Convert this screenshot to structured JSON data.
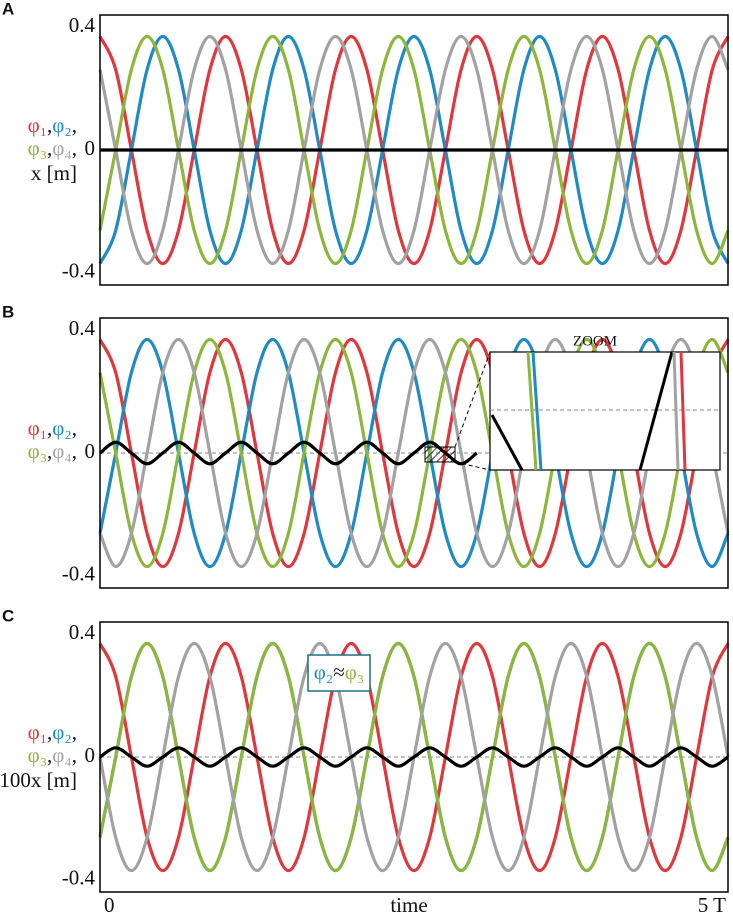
{
  "chart_data": [
    {
      "type": "line",
      "panel_label": "A",
      "name_separator": ",",
      "xlim": [
        0,
        5
      ],
      "ylim": [
        -0.44,
        0.44
      ],
      "yticks": [
        -0.4,
        0,
        0.4
      ],
      "zero_line": true,
      "x": [
        0,
        0.125,
        0.25,
        0.375,
        0.5,
        0.625,
        0.75,
        0.875,
        1,
        1.125,
        1.25,
        1.375,
        1.5,
        1.625,
        1.75,
        1.875,
        2,
        2.125,
        2.25,
        2.375,
        2.5,
        2.625,
        2.75,
        2.875,
        3,
        3.125,
        3.25,
        3.375,
        3.5,
        3.625,
        3.75,
        3.875,
        4,
        4.125,
        4.25,
        4.375,
        4.5,
        4.625,
        4.75,
        4.875,
        5
      ],
      "series": [
        {
          "name": "φ₁",
          "color": "#e0373c",
          "values": [
            0.37,
            0.262,
            0,
            -0.262,
            -0.37,
            -0.262,
            0,
            0.262,
            0.37,
            0.262,
            0,
            -0.262,
            -0.37,
            -0.262,
            0,
            0.262,
            0.37,
            0.262,
            0,
            -0.262,
            -0.37,
            -0.262,
            0,
            0.262,
            0.37,
            0.262,
            0,
            -0.262,
            -0.37,
            -0.262,
            0,
            0.262,
            0.37,
            0.262,
            0,
            -0.262,
            -0.37,
            -0.262,
            0,
            0.262,
            0.37
          ]
        },
        {
          "name": "φ₂",
          "color": "#1f8ac4",
          "values": [
            -0.37,
            -0.262,
            0,
            0.262,
            0.37,
            0.262,
            0,
            -0.262,
            -0.37,
            -0.262,
            0,
            0.262,
            0.37,
            0.262,
            0,
            -0.262,
            -0.37,
            -0.262,
            0,
            0.262,
            0.37,
            0.262,
            0,
            -0.262,
            -0.37,
            -0.262,
            0,
            0.262,
            0.37,
            0.262,
            0,
            -0.262,
            -0.37,
            -0.262,
            0,
            0.262,
            0.37,
            0.262,
            0,
            -0.262,
            -0.37
          ]
        },
        {
          "name": "φ₃",
          "color": "#8db63c",
          "values": [
            -0.262,
            0,
            0.262,
            0.37,
            0.262,
            0,
            -0.262,
            -0.37,
            -0.262,
            0,
            0.262,
            0.37,
            0.262,
            0,
            -0.262,
            -0.37,
            -0.262,
            0,
            0.262,
            0.37,
            0.262,
            0,
            -0.262,
            -0.37,
            -0.262,
            0,
            0.262,
            0.37,
            0.262,
            0,
            -0.262,
            -0.37,
            -0.262,
            0,
            0.262,
            0.37,
            0.262,
            0,
            -0.262,
            -0.37,
            -0.262
          ]
        },
        {
          "name": "φ₄",
          "color": "#a2a2a2",
          "values": [
            0.262,
            0,
            -0.262,
            -0.37,
            -0.262,
            0,
            0.262,
            0.37,
            0.262,
            0,
            -0.262,
            -0.37,
            -0.262,
            0,
            0.262,
            0.37,
            0.262,
            0,
            -0.262,
            -0.37,
            -0.262,
            0,
            0.262,
            0.37,
            0.262,
            0,
            -0.262,
            -0.37,
            -0.262,
            0,
            0.262,
            0.37,
            0.262,
            0,
            -0.262,
            -0.37,
            -0.262,
            0,
            0.262,
            0.37,
            0.262
          ]
        },
        {
          "name": "x [m]",
          "color": "#000000",
          "values": [
            0,
            0,
            0,
            0,
            0,
            0,
            0,
            0,
            0,
            0,
            0,
            0,
            0,
            0,
            0,
            0,
            0,
            0,
            0,
            0,
            0,
            0,
            0,
            0,
            0,
            0,
            0,
            0,
            0,
            0,
            0,
            0,
            0,
            0,
            0,
            0,
            0,
            0,
            0,
            0,
            0
          ]
        }
      ]
    },
    {
      "type": "line",
      "panel_label": "B",
      "name_separator": ",",
      "inset_label": "ZOOM",
      "xlim": [
        0,
        5
      ],
      "ylim": [
        -0.44,
        0.44
      ],
      "yticks": [
        -0.4,
        0,
        0.4
      ],
      "zero_line": true,
      "x": [
        0,
        0.125,
        0.25,
        0.375,
        0.5,
        0.625,
        0.75,
        0.875,
        1,
        1.125,
        1.25,
        1.375,
        1.5,
        1.625,
        1.75,
        1.875,
        2,
        2.125,
        2.25,
        2.375,
        2.5,
        2.625,
        2.75,
        2.875,
        3,
        3.125,
        3.25,
        3.375,
        3.5,
        3.625,
        3.75,
        3.875,
        4,
        4.125,
        4.25,
        4.375,
        4.5,
        4.625,
        4.75,
        4.875,
        5
      ],
      "series": [
        {
          "name": "φ₁",
          "color": "#e0373c",
          "values": [
            0.37,
            0.262,
            0,
            -0.262,
            -0.37,
            -0.262,
            0,
            0.262,
            0.37,
            0.262,
            0,
            -0.262,
            -0.37,
            -0.262,
            0,
            0.262,
            0.37,
            0.262,
            0,
            -0.262,
            -0.37,
            -0.262,
            0,
            0.262,
            0.37,
            0.262,
            0,
            -0.262,
            -0.37,
            -0.262,
            0,
            0.262,
            0.37,
            0.262,
            0,
            -0.262,
            -0.37,
            -0.262,
            0,
            0.262,
            0.37
          ]
        },
        {
          "name": "φ₂",
          "color": "#1f8ac4",
          "values": [
            -0.262,
            0,
            0.262,
            0.37,
            0.262,
            0,
            -0.262,
            -0.37,
            -0.262,
            0,
            0.262,
            0.37,
            0.262,
            0,
            -0.262,
            -0.37,
            -0.262,
            0,
            0.262,
            0.37,
            0.262,
            0,
            -0.262,
            -0.37,
            -0.262,
            0,
            0.262,
            0.37,
            0.262,
            0,
            -0.262,
            -0.37,
            -0.262,
            0,
            0.262,
            0.37,
            0.262,
            0,
            -0.262,
            -0.37,
            -0.262
          ]
        },
        {
          "name": "φ₃",
          "color": "#8db63c",
          "values": [
            0.262,
            0,
            -0.262,
            -0.37,
            -0.262,
            0,
            0.262,
            0.37,
            0.262,
            0,
            -0.262,
            -0.37,
            -0.262,
            0,
            0.262,
            0.37,
            0.262,
            0,
            -0.262,
            -0.37,
            -0.262,
            0,
            0.262,
            0.37,
            0.262,
            0,
            -0.262,
            -0.37,
            -0.262,
            0,
            0.262,
            0.37,
            0.262,
            0,
            -0.262,
            -0.37,
            -0.262,
            0,
            0.262,
            0.37,
            0.262
          ]
        },
        {
          "name": "φ₄",
          "color": "#a2a2a2",
          "values": [
            -0.262,
            -0.37,
            -0.262,
            0,
            0.262,
            0.37,
            0.262,
            0,
            -0.262,
            -0.37,
            -0.262,
            0,
            0.262,
            0.37,
            0.262,
            0,
            -0.262,
            -0.37,
            -0.262,
            0,
            0.262,
            0.37,
            0.262,
            0,
            -0.262,
            -0.37,
            -0.262,
            0,
            0.262,
            0.37,
            0.262,
            0,
            -0.262,
            -0.37,
            -0.262,
            0,
            0.262,
            0.37,
            0.262,
            0,
            -0.262
          ]
        },
        {
          "color": "#000000",
          "values": [
            0,
            0.035,
            0,
            -0.035,
            0,
            0.035,
            0,
            -0.035,
            0,
            0.035,
            0,
            -0.035,
            0,
            0.035,
            0,
            -0.035,
            0,
            0.035,
            0,
            -0.035,
            0,
            0.035,
            0,
            -0.035,
            0,
            null,
            null,
            null,
            null,
            null,
            null,
            null,
            null,
            null,
            null,
            null,
            null,
            null,
            null,
            null,
            null
          ]
        }
      ]
    },
    {
      "type": "line",
      "panel_label": "C",
      "name_separator": ",",
      "annotation": [
        "φ₂",
        "≈",
        "φ₃"
      ],
      "xlim": [
        0,
        5
      ],
      "ylim": [
        -0.44,
        0.44
      ],
      "yticks": [
        -0.4,
        0,
        0.4
      ],
      "zero_line": true,
      "xticks": [
        0,
        {
          "value": 5,
          "label": "5 T"
        }
      ],
      "xlabel": "time",
      "x": [
        0,
        0.125,
        0.25,
        0.375,
        0.5,
        0.625,
        0.75,
        0.875,
        1,
        1.125,
        1.25,
        1.375,
        1.5,
        1.625,
        1.75,
        1.875,
        2,
        2.125,
        2.25,
        2.375,
        2.5,
        2.625,
        2.75,
        2.875,
        3,
        3.125,
        3.25,
        3.375,
        3.5,
        3.625,
        3.75,
        3.875,
        4,
        4.125,
        4.25,
        4.375,
        4.5,
        4.625,
        4.75,
        4.875,
        5
      ],
      "series": [
        {
          "name": "φ₁",
          "color": "#e0373c",
          "values": [
            0.37,
            0.262,
            0,
            -0.262,
            -0.37,
            -0.262,
            0,
            0.262,
            0.37,
            0.262,
            0,
            -0.262,
            -0.37,
            -0.262,
            0,
            0.262,
            0.37,
            0.262,
            0,
            -0.262,
            -0.37,
            -0.262,
            0,
            0.262,
            0.37,
            0.262,
            0,
            -0.262,
            -0.37,
            -0.262,
            0,
            0.262,
            0.37,
            0.262,
            0,
            -0.262,
            -0.37,
            -0.262,
            0,
            0.262,
            0.37
          ]
        },
        {
          "name": "φ₂",
          "color": "#1f8ac4",
          "values": [
            -0.262,
            0,
            0.262,
            0.37,
            0.262,
            0,
            -0.262,
            -0.37,
            -0.262,
            0,
            0.262,
            0.37,
            0.262,
            0,
            -0.262,
            -0.37,
            -0.262,
            0,
            0.262,
            0.37,
            0.262,
            0,
            -0.262,
            -0.37,
            -0.262,
            0,
            0.262,
            0.37,
            0.262,
            0,
            -0.262,
            -0.37,
            -0.262,
            0,
            0.262,
            0.37,
            0.262,
            0,
            -0.262,
            -0.37,
            -0.262
          ]
        },
        {
          "name": "φ₃",
          "color": "#8db63c",
          "values": [
            -0.262,
            0,
            0.262,
            0.37,
            0.262,
            0,
            -0.262,
            -0.37,
            -0.262,
            0,
            0.262,
            0.37,
            0.262,
            0,
            -0.262,
            -0.37,
            -0.262,
            0,
            0.262,
            0.37,
            0.262,
            0,
            -0.262,
            -0.37,
            -0.262,
            0,
            0.262,
            0.37,
            0.262,
            0,
            -0.262,
            -0.37,
            -0.262,
            0,
            0.262,
            0.37,
            0.262,
            0,
            -0.262,
            -0.37,
            -0.262
          ]
        },
        {
          "name": "φ₄",
          "color": "#a2a2a2",
          "values": [
            0,
            -0.262,
            -0.37,
            -0.262,
            0,
            0.262,
            0.37,
            0.262,
            0,
            -0.262,
            -0.37,
            -0.262,
            0,
            0.262,
            0.37,
            0.262,
            0,
            -0.262,
            -0.37,
            -0.262,
            0,
            0.262,
            0.37,
            0.262,
            0,
            -0.262,
            -0.37,
            -0.262,
            0,
            0.262,
            0.37,
            0.262,
            0,
            -0.262,
            -0.37,
            -0.262,
            0,
            0.262,
            0.37,
            0.262,
            0
          ]
        },
        {
          "name": "100x [m]",
          "color": "#000000",
          "values": [
            0,
            0.03,
            0,
            -0.03,
            0,
            0.03,
            0,
            -0.03,
            0,
            0.03,
            0,
            -0.03,
            0,
            0.03,
            0,
            -0.03,
            0,
            0.03,
            0,
            -0.03,
            0,
            0.03,
            0,
            -0.03,
            0,
            0.03,
            0,
            -0.03,
            0,
            0.03,
            0,
            -0.03,
            0,
            0.03,
            0,
            -0.03,
            0,
            0.03,
            0,
            -0.03,
            0
          ]
        }
      ]
    }
  ]
}
